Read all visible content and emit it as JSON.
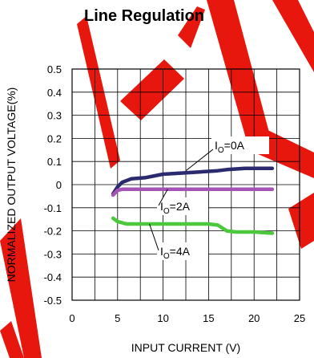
{
  "chart_data": {
    "type": "line",
    "title": "Line Regulation",
    "xlabel": "INPUT CURRENT (V)",
    "ylabel": "NORMALIZED OUTPUT VOLTAGE(%)",
    "xlim": [
      0,
      25
    ],
    "ylim": [
      -0.5,
      0.5
    ],
    "x_ticks": [
      "0",
      "5",
      "10",
      "15",
      "20",
      "25"
    ],
    "y_ticks": [
      "0.5",
      "0.4",
      "0.3",
      "0.2",
      "0.1",
      "0",
      "-0.1",
      "-0.2",
      "-0.3",
      "-0.4",
      "-0.5"
    ],
    "grid": true,
    "series": [
      {
        "name": "IO=0A",
        "label_main": "I",
        "label_sub": "O",
        "label_rest": "=0A",
        "color": "#2a2a6e",
        "points": [
          [
            4.5,
            -0.04
          ],
          [
            5,
            -0.01
          ],
          [
            5.5,
            0.01
          ],
          [
            6.5,
            0.025
          ],
          [
            8,
            0.03
          ],
          [
            10,
            0.045
          ],
          [
            12,
            0.05
          ],
          [
            14,
            0.055
          ],
          [
            16,
            0.06
          ],
          [
            17,
            0.065
          ],
          [
            19,
            0.07
          ],
          [
            21,
            0.07
          ],
          [
            22,
            0.07
          ]
        ]
      },
      {
        "name": "IO=2A",
        "label_main": "I",
        "label_sub": "O",
        "label_rest": "=2A",
        "color": "#a653b8",
        "points": [
          [
            4.5,
            -0.045
          ],
          [
            5,
            -0.025
          ],
          [
            5.5,
            -0.02
          ],
          [
            8,
            -0.02
          ],
          [
            12,
            -0.02
          ],
          [
            16,
            -0.02
          ],
          [
            20,
            -0.02
          ],
          [
            22,
            -0.02
          ]
        ]
      },
      {
        "name": "IO=4A",
        "label_main": "I",
        "label_sub": "O",
        "label_rest": "=4A",
        "color": "#4bc83c",
        "points": [
          [
            4.5,
            -0.145
          ],
          [
            5,
            -0.16
          ],
          [
            6,
            -0.17
          ],
          [
            8,
            -0.17
          ],
          [
            12,
            -0.17
          ],
          [
            15,
            -0.17
          ],
          [
            16,
            -0.175
          ],
          [
            17,
            -0.2
          ],
          [
            18,
            -0.205
          ],
          [
            20,
            -0.205
          ],
          [
            22,
            -0.21
          ]
        ]
      }
    ],
    "colors": {
      "watermark": "#e8170e",
      "grid": "#000000"
    }
  }
}
